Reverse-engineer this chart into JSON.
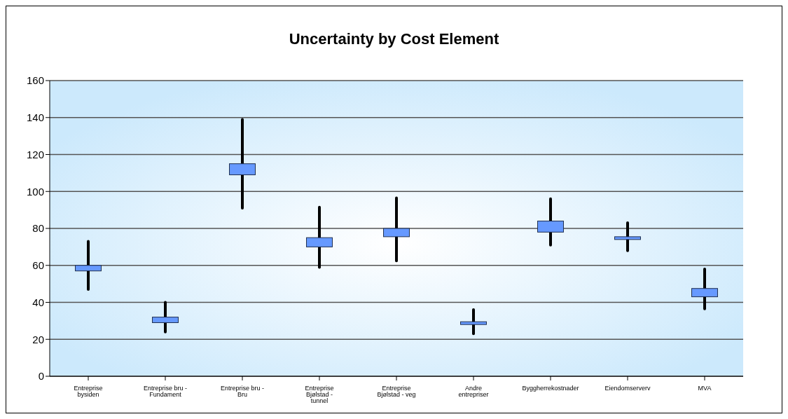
{
  "chart_data": {
    "type": "candlestick",
    "title": "Uncertainty by Cost Element",
    "categories": [
      "Entreprise bysiden",
      "Entreprise bru - Fundament",
      "Entreprise bru - Bru",
      "Entreprise Bjølstad - tunnel",
      "Entreprise Bjølstad - veg",
      "Andre entrepriser",
      "Byggherrekostnader",
      "Eiendomserverv",
      "MVA"
    ],
    "ohlc": [
      [
        57,
        73,
        47,
        60
      ],
      [
        29,
        40,
        24,
        32
      ],
      [
        109,
        139,
        91,
        115
      ],
      [
        70,
        91.5,
        59,
        75
      ],
      [
        75.5,
        96.5,
        62.5,
        80
      ],
      [
        28,
        36,
        23,
        29.5
      ],
      [
        78,
        96,
        71,
        84
      ],
      [
        74,
        83,
        68,
        75.5
      ],
      [
        43,
        58,
        36.5,
        47.5
      ]
    ],
    "color": "#6699ff",
    "ylim": [
      0,
      160
    ],
    "yticks": [
      0,
      20,
      40,
      60,
      80,
      100,
      120,
      140,
      160
    ],
    "grid": "y"
  }
}
